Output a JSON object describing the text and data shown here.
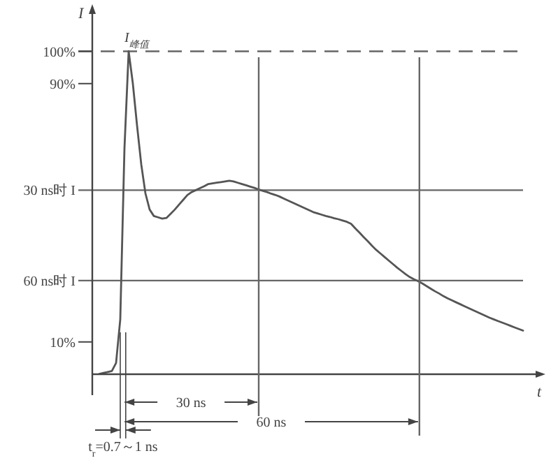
{
  "chart_data": {
    "type": "line",
    "xlabel": "t",
    "ylabel": "I",
    "categories": [
      null,
      null,
      null,
      null,
      null,
      null,
      null,
      null,
      null,
      null,
      null,
      null,
      null,
      null,
      null,
      null,
      null,
      null,
      null,
      null,
      null,
      null,
      null,
      null,
      null,
      null,
      null,
      null,
      null,
      null,
      null,
      null,
      null,
      null,
      null,
      null,
      null,
      null,
      null,
      null,
      null,
      null,
      null,
      null,
      null,
      null,
      null,
      null,
      null,
      null,
      null,
      null,
      null,
      null,
      null,
      null,
      null,
      null,
      null,
      null,
      null,
      null,
      null,
      null,
      null,
      null,
      null,
      null,
      null,
      null,
      null,
      null,
      null,
      null,
      null,
      null,
      null,
      null,
      null,
      null,
      null,
      null,
      null,
      null,
      null,
      null,
      null,
      null,
      null,
      null,
      null,
      null,
      null,
      null,
      null,
      null,
      null,
      null,
      null,
      null,
      null,
      null
    ],
    "values": [
      0.1,
      0.4,
      0.7,
      1,
      3.5,
      17,
      70,
      100,
      90,
      77,
      65,
      56,
      51,
      49,
      48.6,
      48.2,
      48.4,
      49.7,
      51,
      52.5,
      54,
      55.5,
      56.4,
      57,
      57.6,
      58.2,
      58.9,
      59.1,
      59.3,
      59.5,
      59.7,
      59.9,
      59.7,
      59.3,
      58.9,
      58.5,
      58.1,
      57.7,
      57.2,
      56.8,
      56.4,
      55.9,
      55.5,
      55,
      54.4,
      53.8,
      53.2,
      52.6,
      52,
      51.4,
      50.8,
      50.2,
      49.8,
      49.4,
      49,
      48.7,
      48.3,
      48,
      47.6,
      47.2,
      46.6,
      45.2,
      43.9,
      42.5,
      41.2,
      39.8,
      38.5,
      37.4,
      36.3,
      35.2,
      34.1,
      33,
      32,
      31,
      30.1,
      29.4,
      28.8,
      28.1,
      27.3,
      26.5,
      25.7,
      25,
      24.2,
      23.5,
      22.9,
      22.3,
      21.7,
      21.1,
      20.5,
      19.9,
      19.3,
      18.7,
      18.1,
      17.5,
      17,
      16.5,
      16,
      15.5,
      15,
      14.5,
      14,
      13.5
    ],
    "color": "#555555",
    "ylim": [
      0,
      112
    ],
    "yticks": [
      {
        "value": 10,
        "label": "10%"
      },
      {
        "value": 90,
        "label": "90%"
      },
      {
        "value": 100,
        "label": "100%"
      }
    ],
    "tick_labels": "y",
    "marker": "none",
    "line_style": "solid",
    "grid": false,
    "ref_lines": [
      {
        "axis": "y",
        "value": 100,
        "line_style": "dashed"
      },
      {
        "axis": "y",
        "value": 57,
        "label": "30 ns时 I"
      },
      {
        "axis": "y",
        "value": 29,
        "label": "60 ns时 I"
      }
    ],
    "annotations": [
      {
        "text": "I$_{峰值}$",
        "y": 100
      },
      "30 ns",
      "60 ns",
      "t$_{r}$=0.7～1 ns"
    ]
  }
}
